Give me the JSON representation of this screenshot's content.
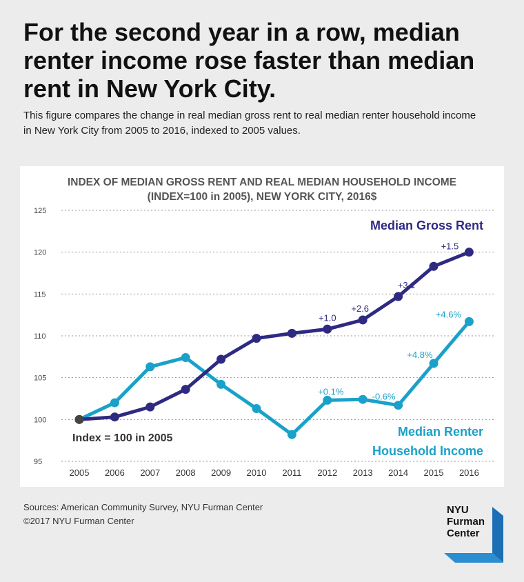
{
  "headline": "For the second year in a row, median renter income rose faster than median rent in New York City.",
  "subtitle": "This figure compares the change in real median gross rent to real median renter household income in New York City from 2005 to 2016, indexed to 2005 values.",
  "footer": {
    "sources": "Sources:  American Community Survey, NYU Furman Center",
    "copyright": "©2017 NYU Furman Center"
  },
  "logo": {
    "line1": "NYU",
    "line2": "Furman",
    "line3": "Center"
  },
  "colors": {
    "rent": "#2e2a82",
    "income": "#1aa1c9",
    "base": "#444444",
    "background": "#ececec"
  },
  "chart_data": {
    "type": "line",
    "title_line1": "INDEX OF MEDIAN GROSS RENT AND REAL MEDIAN HOUSEHOLD INCOME",
    "title_line2": "(INDEX=100 in 2005), NEW YORK CITY, 2016$",
    "categories": [
      "2005",
      "2006",
      "2007",
      "2008",
      "2009",
      "2010",
      "2011",
      "2012",
      "2013",
      "2014",
      "2015",
      "2016"
    ],
    "ylim": [
      95,
      125
    ],
    "yticks": [
      95,
      100,
      105,
      110,
      115,
      120,
      125
    ],
    "grid": true,
    "series": [
      {
        "name": "Median Gross Rent",
        "values": [
          100,
          100.3,
          101.5,
          103.6,
          107.2,
          109.7,
          110.3,
          110.8,
          111.9,
          114.7,
          118.3,
          120.0
        ],
        "annotations": [
          {
            "index": 7,
            "text": "+1.0"
          },
          {
            "index": 8,
            "text": "+2.6"
          },
          {
            "index": 9,
            "text": "+3.1"
          },
          {
            "index": 11,
            "text": "+1.5"
          }
        ]
      },
      {
        "name": "Median Renter Household Income",
        "name_line1": "Median Renter",
        "name_line2": "Household Income",
        "values": [
          100,
          102,
          106.3,
          107.4,
          104.2,
          101.3,
          98.2,
          102.3,
          102.4,
          101.7,
          106.7,
          111.7
        ],
        "annotations": [
          {
            "index": 7,
            "text": "+0.1%"
          },
          {
            "index": 9,
            "text": "-0.6%"
          },
          {
            "index": 10,
            "text": "+4.8%"
          },
          {
            "index": 11,
            "text": "+4.6%"
          }
        ]
      }
    ],
    "base_label": "Index = 100 in 2005"
  }
}
